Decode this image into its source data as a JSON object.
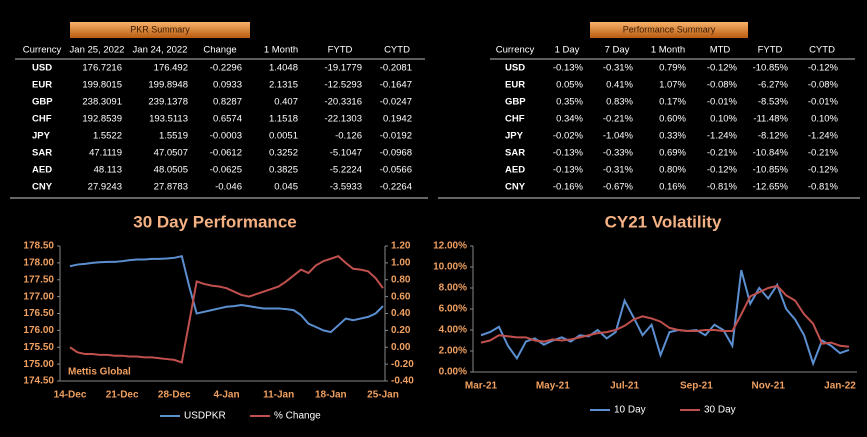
{
  "pkr_summary": {
    "title": "PKR Summary",
    "columns": [
      "Currency",
      "Jan 25, 2022",
      "Jan 24, 2022",
      "Change",
      "1 Month",
      "FYTD",
      "CYTD"
    ],
    "rows": [
      [
        "USD",
        "176.7216",
        "176.492",
        "-0.2296",
        "1.4048",
        "-19.1779",
        "-0.2081"
      ],
      [
        "EUR",
        "199.8015",
        "199.8948",
        "0.0933",
        "2.1315",
        "-12.5293",
        "-0.1647"
      ],
      [
        "GBP",
        "238.3091",
        "239.1378",
        "0.8287",
        "0.407",
        "-20.3316",
        "-0.0247"
      ],
      [
        "CHF",
        "192.8539",
        "193.5113",
        "0.6574",
        "1.1518",
        "-22.1303",
        "0.1942"
      ],
      [
        "JPY",
        "1.5522",
        "1.5519",
        "-0.0003",
        "0.0051",
        "-0.126",
        "-0.0192"
      ],
      [
        "SAR",
        "47.1119",
        "47.0507",
        "-0.0612",
        "0.3252",
        "-5.1047",
        "-0.0968"
      ],
      [
        "AED",
        "48.113",
        "48.0505",
        "-0.0625",
        "0.3825",
        "-5.2224",
        "-0.0566"
      ],
      [
        "CNY",
        "27.9243",
        "27.8783",
        "-0.046",
        "0.045",
        "-3.5933",
        "-0.2264"
      ]
    ]
  },
  "performance_summary": {
    "title": "Performance Summary",
    "columns": [
      "Currency",
      "1 Day",
      "7 Day",
      "1 Month",
      "MTD",
      "FYTD",
      "CYTD"
    ],
    "rows": [
      [
        "USD",
        "-0.13%",
        "-0.31%",
        "0.79%",
        "-0.12%",
        "-10.85%",
        "-0.12%"
      ],
      [
        "EUR",
        "0.05%",
        "0.41%",
        "1.07%",
        "-0.08%",
        "-6.27%",
        "-0.08%"
      ],
      [
        "GBP",
        "0.35%",
        "0.83%",
        "0.17%",
        "-0.01%",
        "-8.53%",
        "-0.01%"
      ],
      [
        "CHF",
        "0.34%",
        "-0.21%",
        "0.60%",
        "0.10%",
        "-11.48%",
        "0.10%"
      ],
      [
        "JPY",
        "-0.02%",
        "-1.04%",
        "0.33%",
        "-1.24%",
        "-8.12%",
        "-1.24%"
      ],
      [
        "SAR",
        "-0.13%",
        "-0.33%",
        "0.69%",
        "-0.21%",
        "-10.84%",
        "-0.21%"
      ],
      [
        "AED",
        "-0.13%",
        "-0.31%",
        "0.80%",
        "-0.12%",
        "-10.85%",
        "-0.12%"
      ],
      [
        "CNY",
        "-0.16%",
        "-0.67%",
        "0.16%",
        "-0.81%",
        "-12.65%",
        "-0.81%"
      ]
    ]
  },
  "chart_data": [
    {
      "type": "line",
      "title": "30 Day Performance",
      "annotation": "Mettis Global",
      "grid": false,
      "legend": "bottom",
      "categories": [
        "14-Dec",
        null,
        null,
        null,
        null,
        null,
        null,
        "21-Dec",
        null,
        null,
        null,
        null,
        null,
        null,
        "28-Dec",
        null,
        null,
        null,
        null,
        null,
        null,
        "4-Jan",
        null,
        null,
        null,
        null,
        null,
        null,
        "11-Jan",
        null,
        null,
        null,
        null,
        null,
        null,
        "18-Jan",
        null,
        null,
        null,
        null,
        null,
        null,
        "25-Jan"
      ],
      "series": [
        {
          "name": "USDPKR",
          "color": "#5b8fd0",
          "values": [
            177.9,
            177.95,
            177.97,
            178.0,
            178.02,
            178.03,
            178.03,
            178.05,
            178.08,
            178.1,
            178.1,
            178.12,
            178.12,
            178.13,
            178.15,
            178.2,
            177.3,
            176.5,
            176.55,
            176.6,
            176.65,
            176.7,
            176.72,
            176.75,
            176.72,
            176.68,
            176.65,
            176.65,
            176.65,
            176.63,
            176.6,
            176.45,
            176.2,
            176.1,
            176.0,
            175.95,
            176.15,
            176.35,
            176.3,
            176.35,
            176.4,
            176.5,
            176.72
          ]
        },
        {
          "name": "% Change",
          "color": "#c0504d",
          "axis": "y2",
          "values": [
            0.0,
            -0.06,
            -0.08,
            -0.08,
            -0.09,
            -0.09,
            -0.1,
            -0.1,
            -0.11,
            -0.11,
            -0.12,
            -0.12,
            -0.13,
            -0.14,
            -0.15,
            -0.18,
            0.3,
            0.78,
            0.75,
            0.73,
            0.72,
            0.7,
            0.66,
            0.62,
            0.6,
            0.63,
            0.66,
            0.69,
            0.72,
            0.78,
            0.85,
            0.92,
            0.88,
            0.97,
            1.02,
            1.05,
            1.08,
            1.0,
            0.93,
            0.92,
            0.9,
            0.82,
            0.7
          ]
        }
      ],
      "ylim": [
        174.5,
        178.5
      ],
      "yticks": [
        {
          "value": 174.5,
          "label": "174.50"
        },
        {
          "value": 175,
          "label": "175.00"
        },
        {
          "value": 175.5,
          "label": "175.50"
        },
        {
          "value": 176,
          "label": "176.00"
        },
        {
          "value": 176.5,
          "label": "176.50"
        },
        {
          "value": 177,
          "label": "177.00"
        },
        {
          "value": 177.5,
          "label": "177.50"
        },
        {
          "value": 178,
          "label": "178.00"
        },
        {
          "value": 178.5,
          "label": "178.50"
        }
      ],
      "y2lim": [
        -0.4,
        1.2
      ],
      "y2ticks": [
        {
          "value": -0.4,
          "label": "-0.40"
        },
        {
          "value": -0.2,
          "label": "-0.20"
        },
        {
          "value": 0,
          "label": "0.00"
        },
        {
          "value": 0.2,
          "label": "0.20"
        },
        {
          "value": 0.4,
          "label": "0.40"
        },
        {
          "value": 0.6,
          "label": "0.60"
        },
        {
          "value": 0.8,
          "label": "0.80"
        },
        {
          "value": 1.0,
          "label": "1.00"
        },
        {
          "value": 1.2,
          "label": "1.20"
        }
      ]
    },
    {
      "type": "line",
      "title": "CY21 Volatility",
      "grid": false,
      "legend": "bottom",
      "categories": [
        "Mar-21",
        null,
        null,
        null,
        null,
        null,
        null,
        null,
        "May-21",
        null,
        null,
        null,
        null,
        null,
        null,
        null,
        "Jul-21",
        null,
        null,
        null,
        null,
        null,
        null,
        null,
        "Sep-21",
        null,
        null,
        null,
        null,
        null,
        null,
        null,
        "Nov-21",
        null,
        null,
        null,
        null,
        null,
        null,
        null,
        "Jan-22",
        null
      ],
      "series": [
        {
          "name": "10 Day",
          "color": "#5b8fd0",
          "values": [
            3.5,
            3.8,
            4.3,
            2.5,
            1.3,
            2.9,
            3.2,
            2.6,
            3.0,
            3.3,
            2.9,
            3.5,
            3.4,
            4.0,
            3.2,
            3.8,
            6.8,
            5.2,
            3.5,
            4.5,
            1.6,
            3.8,
            4.0,
            3.9,
            4.0,
            3.5,
            4.5,
            4.0,
            2.5,
            9.7,
            6.5,
            8.0,
            7.0,
            8.3,
            6.0,
            5.0,
            3.5,
            0.8,
            3.0,
            2.5,
            1.8,
            2.1
          ]
        },
        {
          "name": "30 Day",
          "color": "#c0504d",
          "values": [
            2.8,
            3.0,
            3.5,
            3.4,
            3.3,
            3.3,
            3.0,
            2.9,
            3.1,
            3.0,
            3.1,
            3.3,
            3.5,
            3.7,
            3.8,
            4.0,
            4.4,
            5.0,
            5.3,
            5.1,
            4.8,
            4.2,
            4.0,
            3.9,
            3.9,
            4.0,
            4.0,
            3.9,
            3.9,
            5.5,
            7.2,
            7.6,
            8.0,
            8.2,
            7.3,
            6.8,
            5.5,
            4.6,
            2.7,
            2.8,
            2.5,
            2.4
          ]
        }
      ],
      "ylim": [
        0,
        12
      ],
      "yticks": [
        {
          "value": 0,
          "label": "0.00%"
        },
        {
          "value": 2,
          "label": "2.00%"
        },
        {
          "value": 4,
          "label": "4.00%"
        },
        {
          "value": 6,
          "label": "6.00%"
        },
        {
          "value": 8,
          "label": "8.00%"
        },
        {
          "value": 10,
          "label": "10.00%"
        },
        {
          "value": 12,
          "label": "12.00%"
        }
      ]
    }
  ]
}
